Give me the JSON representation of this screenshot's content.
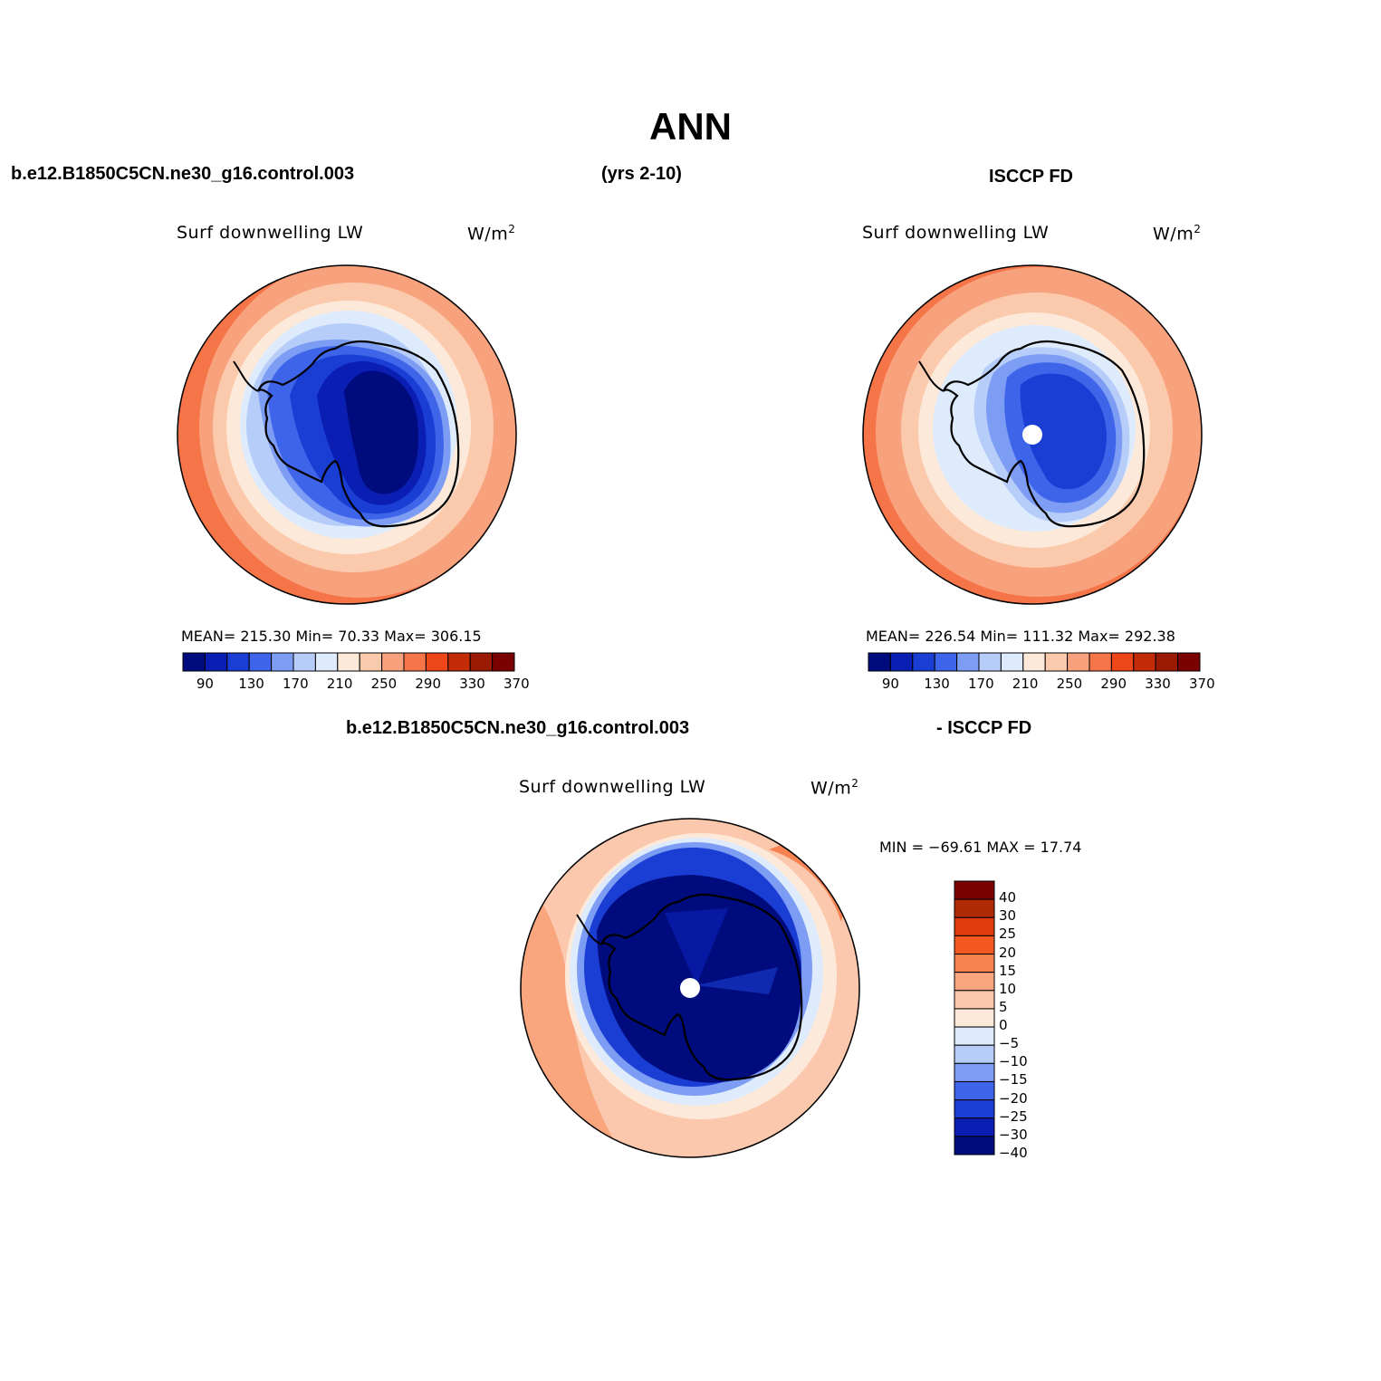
{
  "page": {
    "title": "ANN",
    "case_label": "b.e12.B1850C5CN.ne30_g16.control.003",
    "years_label": "(yrs 2-10)",
    "obs_label": "ISCCP FD",
    "diff_case_label": "b.e12.B1850C5CN.ne30_g16.control.003",
    "diff_obs_label": "- ISCCP FD"
  },
  "panels": [
    {
      "id": "model",
      "variable": "Surf downwelling LW",
      "units_base": "W/m",
      "units_exp": "2",
      "stats_text": "MEAN= 215.30   Min=  70.33   Max= 306.15",
      "pole_missing": false
    },
    {
      "id": "obs",
      "variable": "Surf downwelling LW",
      "units_base": "W/m",
      "units_exp": "2",
      "stats_text": "MEAN= 226.54   Min= 111.32   Max= 292.38",
      "pole_missing": true
    },
    {
      "id": "diff",
      "variable": "Surf downwelling LW",
      "units_base": "W/m",
      "units_exp": "2",
      "stats_text": "MIN = −69.61 MAX =  17.74",
      "pole_missing": true
    }
  ],
  "colorbar_abs": {
    "colors": [
      "#000c7e",
      "#0a1eb4",
      "#1a3ed4",
      "#3e64ea",
      "#7d9cf4",
      "#b7cdf9",
      "#ddebfc",
      "#fde9d9",
      "#fbc9ac",
      "#f8a17d",
      "#f57448",
      "#ec4619",
      "#c42b08",
      "#9a1a04",
      "#7b0203"
    ],
    "tick_labels": [
      "90",
      "130",
      "170",
      "210",
      "250",
      "290",
      "330",
      "370"
    ]
  },
  "colorbar_diff": {
    "colors_top_to_bottom": [
      "#7b0203",
      "#b02a05",
      "#e03b0c",
      "#f25820",
      "#f6824f",
      "#f9a67f",
      "#fbc8ad",
      "#fde9d9",
      "#ddebfc",
      "#b7cdf9",
      "#7d9cf4",
      "#3e64ea",
      "#1a3ed4",
      "#0a1eb4",
      "#000c7e"
    ],
    "tick_labels": [
      "40",
      "30",
      "25",
      "20",
      "15",
      "10",
      "5",
      "0",
      "−5",
      "−10",
      "−15",
      "−20",
      "−25",
      "−30",
      "−40"
    ]
  }
}
